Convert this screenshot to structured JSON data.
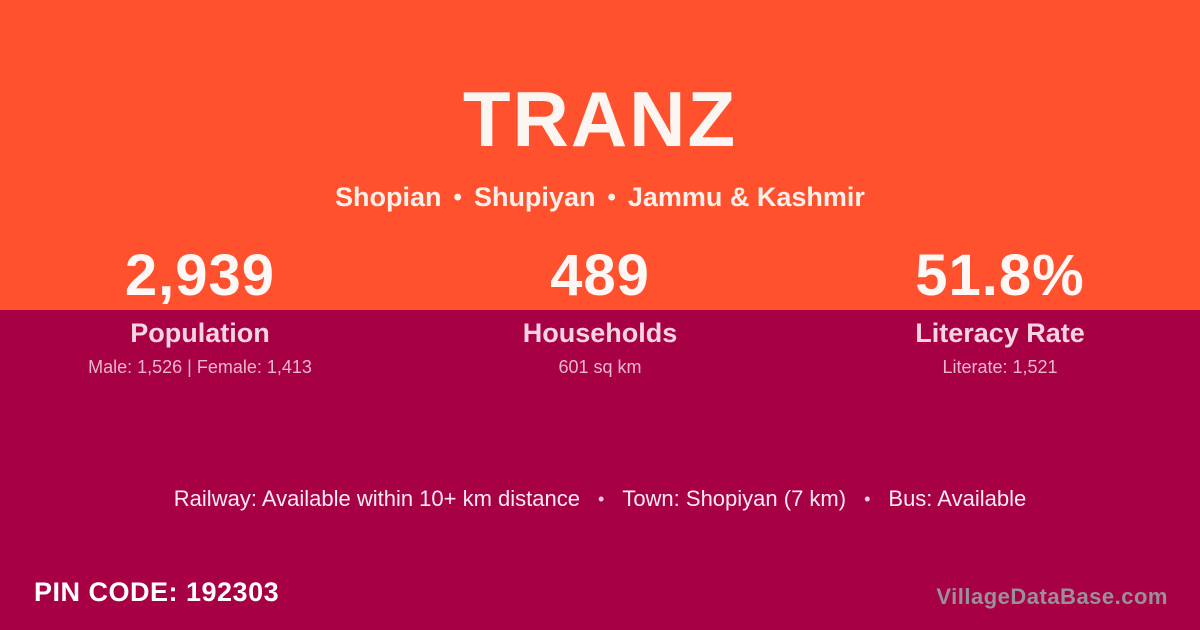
{
  "header": {
    "title": "TRANZ",
    "location": [
      "Shopian",
      "Shupiyan",
      "Jammu & Kashmir"
    ],
    "separator": "•"
  },
  "stats": [
    {
      "value": "2,939",
      "label": "Population",
      "detail": "Male: 1,526 | Female: 1,413"
    },
    {
      "value": "489",
      "label": "Households",
      "detail": "601 sq km"
    },
    {
      "value": "51.8%",
      "label": "Literacy Rate",
      "detail": "Literate: 1,521"
    }
  ],
  "amenities": {
    "items": [
      "Railway: Available within 10+ km distance",
      "Town: Shopiyan (7 km)",
      "Bus: Available"
    ],
    "separator": "•"
  },
  "footer": {
    "pin_code_label": "PIN CODE: 192303",
    "watermark": "VillageDataBase.com"
  },
  "colors": {
    "orange": "#FF512D",
    "magenta": "#A80045"
  }
}
